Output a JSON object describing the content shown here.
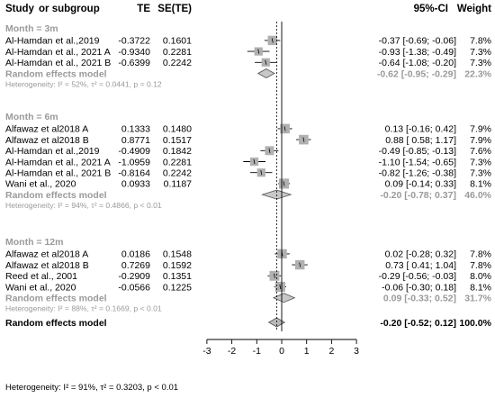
{
  "header": {
    "study": "Study",
    "subgroup": "or subgroup",
    "te": "TE",
    "se": "SE(TE)",
    "ci": "95%-CI",
    "weight": "Weight"
  },
  "chart_data": {
    "type": "forest",
    "xlim": [
      -3,
      3
    ],
    "xticks": [
      "-3",
      "-2",
      "-1",
      "0",
      "1",
      "2",
      "3"
    ],
    "null_line": 0,
    "overall_line": -0.2,
    "groups": [
      {
        "name": "Month = 3m",
        "studies": [
          {
            "label": "Al-Hamdan et al.,2019",
            "te": "-0.3722",
            "se": "0.1601",
            "ci": "-0.37  [-0.69; -0.06]",
            "weight": "7.8%",
            "est": -0.37,
            "lo": -0.69,
            "hi": -0.06,
            "w": 7.8
          },
          {
            "label": "Al-Hamdan et al., 2021 A",
            "te": "-0.9340",
            "se": "0.2281",
            "ci": "-0.93  [-1.38; -0.49]",
            "weight": "7.3%",
            "est": -0.93,
            "lo": -1.38,
            "hi": -0.49,
            "w": 7.3
          },
          {
            "label": "Al-Hamdan et al., 2021 B",
            "te": "-0.6399",
            "se": "0.2242",
            "ci": "-0.64  [-1.08; -0.20]",
            "weight": "7.3%",
            "est": -0.64,
            "lo": -1.08,
            "hi": -0.2,
            "w": 7.3
          }
        ],
        "summary": {
          "label": "Random effects model",
          "ci": "-0.62  [-0.95; -0.29]",
          "weight": "22.3%",
          "est": -0.62,
          "lo": -0.95,
          "hi": -0.29
        },
        "heterogeneity": "Heterogeneity: I² = 52%, τ² = 0.0441, p = 0.12"
      },
      {
        "name": "Month = 6m",
        "studies": [
          {
            "label": "Alfawaz et al2018 A",
            "te": "0.1333",
            "se": "0.1480",
            "ci": "0.13  [-0.16; 0.42]",
            "weight": "7.9%",
            "est": 0.13,
            "lo": -0.16,
            "hi": 0.42,
            "w": 7.9
          },
          {
            "label": "Alfawaz et al2018 B",
            "te": "0.8771",
            "se": "0.1517",
            "ci": "0.88  [ 0.58; 1.17]",
            "weight": "7.9%",
            "est": 0.88,
            "lo": 0.58,
            "hi": 1.17,
            "w": 7.9
          },
          {
            "label": "Al-Hamdan et al.,2019",
            "te": "-0.4909",
            "se": "0.1842",
            "ci": "-0.49  [-0.85; -0.13]",
            "weight": "7.6%",
            "est": -0.49,
            "lo": -0.85,
            "hi": -0.13,
            "w": 7.6
          },
          {
            "label": "Al-Hamdan et al., 2021 A",
            "te": "-1.0959",
            "se": "0.2281",
            "ci": "-1.10  [-1.54; -0.65]",
            "weight": "7.3%",
            "est": -1.1,
            "lo": -1.54,
            "hi": -0.65,
            "w": 7.3
          },
          {
            "label": "Al-Hamdan et al., 2021 B",
            "te": "-0.8164",
            "se": "0.2242",
            "ci": "-0.82  [-1.26; -0.38]",
            "weight": "7.3%",
            "est": -0.82,
            "lo": -1.26,
            "hi": -0.38,
            "w": 7.3
          },
          {
            "label": "Wani et al., 2020",
            "te": "0.0933",
            "se": "0.1187",
            "ci": "0.09  [-0.14; 0.33]",
            "weight": "8.1%",
            "est": 0.09,
            "lo": -0.14,
            "hi": 0.33,
            "w": 8.1
          }
        ],
        "summary": {
          "label": "Random effects model",
          "ci": "-0.20  [-0.78; 0.37]",
          "weight": "46.0%",
          "est": -0.2,
          "lo": -0.78,
          "hi": 0.37
        },
        "heterogeneity": "Heterogeneity: I² = 94%, τ² = 0.4866, p < 0.01"
      },
      {
        "name": "Month = 12m",
        "studies": [
          {
            "label": "Alfawaz et al2018 A",
            "te": "0.0186",
            "se": "0.1548",
            "ci": "0.02  [-0.28; 0.32]",
            "weight": "7.8%",
            "est": 0.02,
            "lo": -0.28,
            "hi": 0.32,
            "w": 7.8
          },
          {
            "label": "Alfawaz et al2018 B",
            "te": "0.7269",
            "se": "0.1592",
            "ci": "0.73  [ 0.41; 1.04]",
            "weight": "7.8%",
            "est": 0.73,
            "lo": 0.41,
            "hi": 1.04,
            "w": 7.8
          },
          {
            "label": "Reed et al., 2001",
            "te": "-0.2909",
            "se": "0.1351",
            "ci": "-0.29  [-0.56; -0.03]",
            "weight": "8.0%",
            "est": -0.29,
            "lo": -0.56,
            "hi": -0.03,
            "w": 8.0
          },
          {
            "label": "Wani et al., 2020",
            "te": "-0.0566",
            "se": "0.1225",
            "ci": "-0.06  [-0.30; 0.18]",
            "weight": "8.1%",
            "est": -0.06,
            "lo": -0.3,
            "hi": 0.18,
            "w": 8.1
          }
        ],
        "summary": {
          "label": "Random effects model",
          "ci": "0.09  [-0.33; 0.52]",
          "weight": "31.7%",
          "est": 0.09,
          "lo": -0.33,
          "hi": 0.52
        },
        "heterogeneity": "Heterogeneity: I² = 88%, τ² = 0.1669, p < 0.01"
      }
    ],
    "overall": {
      "label": "Random effects model",
      "ci": "-0.20  [-0.52; 0.12]",
      "weight": "100.0%",
      "est": -0.2,
      "lo": -0.52,
      "hi": 0.12
    },
    "overall_heterogeneity": "Heterogeneity: I² = 91%, τ² = 0.3203, p < 0.01"
  },
  "colors": {
    "text": "#000000",
    "muted": "#9a9a9a",
    "square": "#b0b0b0",
    "subgroup_diamond": "#c8c8c8",
    "overall_diamond": "#b8b8b8"
  }
}
